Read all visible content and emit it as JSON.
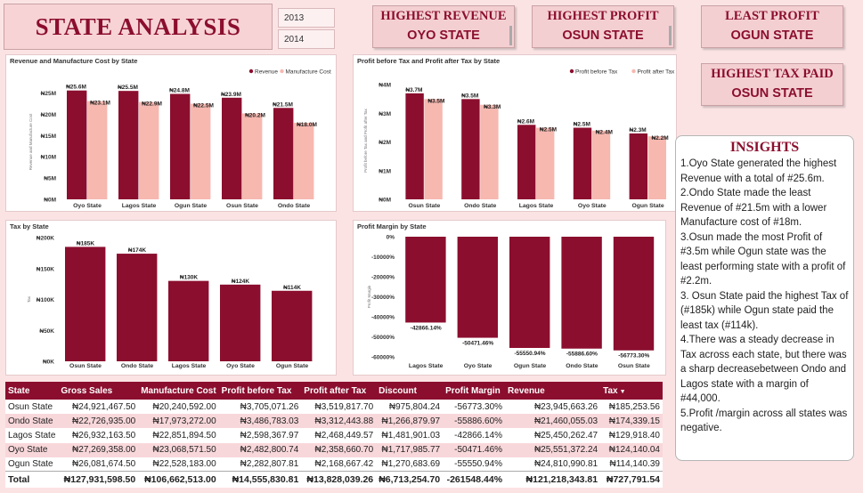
{
  "header": {
    "title": "STATE ANALYSIS",
    "years": [
      "2013",
      "2014"
    ]
  },
  "kpis": [
    {
      "label": "HIGHEST REVENUE",
      "value": "OYO STATE"
    },
    {
      "label": "HIGHEST PROFIT",
      "value": "OSUN STATE"
    },
    {
      "label": "LEAST PROFIT",
      "value": "OGUN STATE"
    },
    {
      "label": "HIGHEST TAX PAID",
      "value": "OSUN STATE"
    }
  ],
  "colors": {
    "primary": "#8b0e2e",
    "secondary": "#f7b8b0",
    "background": "#fbe3e4"
  },
  "chart_data": [
    {
      "type": "bar",
      "title": "Revenue and Manufacture Cost by State",
      "ylabel": "Revenue and Manufacture Cost",
      "categories": [
        "Oyo State",
        "Lagos State",
        "Ogun State",
        "Osun State",
        "Ondo State"
      ],
      "series": [
        {
          "name": "Revenue",
          "values": [
            25.6,
            25.5,
            24.8,
            23.9,
            21.5
          ],
          "labels": [
            "₦25.6M",
            "₦25.5M",
            "₦24.8M",
            "₦23.9M",
            "₦21.5M"
          ]
        },
        {
          "name": "Manufacture Cost",
          "values": [
            23.1,
            22.9,
            22.5,
            20.2,
            18.0
          ],
          "labels": [
            "₦23.1M",
            "₦22.9M",
            "₦22.5M",
            "₦20.2M",
            "₦18.0M"
          ]
        }
      ],
      "ylim": [
        0,
        27
      ],
      "yticks": [
        0,
        5,
        10,
        15,
        20,
        25
      ],
      "ytick_labels": [
        "₦0M",
        "₦5M",
        "₦10M",
        "₦15M",
        "₦20M",
        "₦25M"
      ],
      "legend": "top-right",
      "grid": false
    },
    {
      "type": "bar",
      "title": "Profit before Tax and Profit after Tax by State",
      "ylabel": "Profit before Tax and Profit after Tax",
      "categories": [
        "Osun State",
        "Ondo State",
        "Lagos State",
        "Oyo State",
        "Ogun State"
      ],
      "series": [
        {
          "name": "Profit before Tax",
          "values": [
            3.7,
            3.5,
            2.6,
            2.5,
            2.3
          ],
          "labels": [
            "₦3.7M",
            "₦3.5M",
            "₦2.6M",
            "₦2.5M",
            "₦2.3M"
          ]
        },
        {
          "name": "Profit after Tax",
          "values": [
            3.5,
            3.3,
            2.5,
            2.4,
            2.2
          ],
          "labels": [
            "₦3.5M",
            "₦3.3M",
            "₦2.5M",
            "₦2.4M",
            "₦2.2M"
          ]
        }
      ],
      "ylim": [
        0,
        4.1
      ],
      "yticks": [
        0,
        1,
        2,
        3,
        4
      ],
      "ytick_labels": [
        "₦0M",
        "₦1M",
        "₦2M",
        "₦3M",
        "₦4M"
      ],
      "legend": "top-right",
      "grid": false
    },
    {
      "type": "bar",
      "title": "Tax by State",
      "ylabel": "Tax",
      "categories": [
        "Osun State",
        "Ondo State",
        "Lagos State",
        "Oyo State",
        "Ogun State"
      ],
      "series": [
        {
          "name": "Tax",
          "values": [
            185,
            174,
            130,
            124,
            114
          ],
          "labels": [
            "₦185K",
            "₦174K",
            "₦130K",
            "₦124K",
            "₦114K"
          ]
        }
      ],
      "ylim": [
        0,
        200
      ],
      "yticks": [
        0,
        50,
        100,
        150,
        200
      ],
      "ytick_labels": [
        "₦0K",
        "₦50K",
        "₦100K",
        "₦150K",
        "₦200K"
      ],
      "grid": false
    },
    {
      "type": "bar",
      "title": "Profit Margin by State",
      "ylabel": "Profit Margin",
      "categories": [
        "Lagos State",
        "Oyo State",
        "Ogun State",
        "Ondo State",
        "Osun State"
      ],
      "series": [
        {
          "name": "Profit Margin",
          "values": [
            -42866.14,
            -50471.46,
            -55550.94,
            -55886.6,
            -56773.3
          ],
          "labels": [
            "-42866.14%",
            "-50471.46%",
            "-55550.94%",
            "-55886.60%",
            "-56773.30%"
          ]
        }
      ],
      "ylim": [
        -60000,
        0
      ],
      "yticks": [
        0,
        -10000,
        -20000,
        -30000,
        -40000,
        -50000,
        -60000
      ],
      "ytick_labels": [
        "0%",
        "-10000%",
        "-20000%",
        "-30000%",
        "-40000%",
        "-50000%",
        "-60000%"
      ],
      "grid": false
    }
  ],
  "insights": {
    "title": "INSIGHTS",
    "items": [
      "1.Oyo State generated the highest Revenue with a total of #25.6m.",
      "2.Ondo State made the least Revenue of #21.5m with a lower Manufacture cost of #18m.",
      "3.Osun made the most Profit of #3.5m while Ogun state was the least performing state with a profit of #2.2m.",
      "3. Osun State paid the highest Tax of (#185k) while Ogun state paid the least tax (#114k).",
      "4.There was a steady decrease in Tax across each state, but there was a sharp decreasebetween Ondo and Lagos state with a margin of #44,000.",
      "5.Profit /margin across all states was negative."
    ]
  },
  "table": {
    "columns": [
      "State",
      "Gross Sales",
      "Manufacture Cost",
      "Profit before Tax",
      "Profit after Tax",
      "Discount",
      "Profit Margin",
      "Revenue",
      "Tax"
    ],
    "rows": [
      [
        "Osun State",
        "₦24,921,467.50",
        "₦20,240,592.00",
        "₦3,705,071.26",
        "₦3,519,817.70",
        "₦975,804.24",
        "-56773.30%",
        "₦23,945,663.26",
        "₦185,253.56"
      ],
      [
        "Ondo State",
        "₦22,726,935.00",
        "₦17,973,272.00",
        "₦3,486,783.03",
        "₦3,312,443.88",
        "₦1,266,879.97",
        "-55886.60%",
        "₦21,460,055.03",
        "₦174,339.15"
      ],
      [
        "Lagos State",
        "₦26,932,163.50",
        "₦22,851,894.50",
        "₦2,598,367.97",
        "₦2,468,449.57",
        "₦1,481,901.03",
        "-42866.14%",
        "₦25,450,262.47",
        "₦129,918.40"
      ],
      [
        "Oyo State",
        "₦27,269,358.00",
        "₦23,068,571.50",
        "₦2,482,800.74",
        "₦2,358,660.70",
        "₦1,717,985.77",
        "-50471.46%",
        "₦25,551,372.24",
        "₦124,140.04"
      ],
      [
        "Ogun State",
        "₦26,081,674.50",
        "₦22,528,183.00",
        "₦2,282,807.81",
        "₦2,168,667.42",
        "₦1,270,683.69",
        "-55550.94%",
        "₦24,810,990.81",
        "₦114,140.39"
      ]
    ],
    "total": [
      "Total",
      "₦127,931,598.50",
      "₦106,662,513.00",
      "₦14,555,830.81",
      "₦13,828,039.26",
      "₦6,713,254.70",
      "-261548.44%",
      "₦121,218,343.81",
      "₦727,791.54"
    ]
  }
}
